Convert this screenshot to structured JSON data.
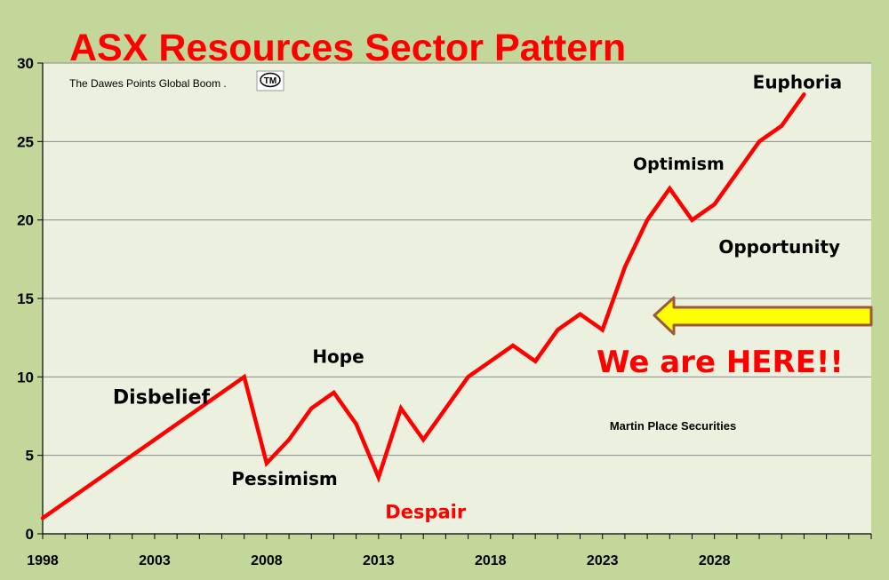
{
  "chart_data": {
    "type": "line",
    "title": "ASX  Resources Sector Pattern",
    "subtitle": "The Dawes Points Global Boom .",
    "trademark": "TM",
    "source": "Martin Place Securities",
    "callout": "We are HERE!!",
    "x_tick_labels": [
      "1998",
      "2003",
      "2008",
      "2013",
      "2018",
      "2023",
      "2028"
    ],
    "y_tick_labels": [
      "0",
      "5",
      "10",
      "15",
      "20",
      "25",
      "30"
    ],
    "xlim": [
      1998,
      2035
    ],
    "ylim": [
      0,
      30
    ],
    "grid": "horizontal",
    "series": [
      {
        "color": "#ff0000",
        "x": [
          1998,
          2001,
          2007,
          2008,
          2009,
          2010,
          2011,
          2012,
          2013,
          2014,
          2015,
          2016,
          2017,
          2018,
          2019,
          2020,
          2021,
          2022,
          2023,
          2024,
          2025,
          2026,
          2027,
          2028,
          2029,
          2030,
          2031,
          2032
        ],
        "y": [
          1,
          4,
          10,
          4.5,
          6,
          8,
          9,
          7,
          3.6,
          8,
          6,
          8,
          10,
          11,
          12,
          11,
          13,
          14,
          13,
          17,
          20,
          22,
          20,
          21,
          23,
          25,
          26,
          28
        ]
      }
    ],
    "annotations": [
      {
        "text": "Disbelief",
        "x": 2003.3,
        "y": 8.3,
        "color": "#000000",
        "size": 22
      },
      {
        "text": "Pessimism",
        "x": 2008.8,
        "y": 3.1,
        "color": "#000000",
        "size": 20
      },
      {
        "text": "Hope",
        "x": 2011.2,
        "y": 10.9,
        "color": "#000000",
        "size": 20
      },
      {
        "text": "Despair",
        "x": 2015.1,
        "y": 1.0,
        "color": "#ff0000",
        "size": 21
      },
      {
        "text": "Optimism",
        "x": 2026.4,
        "y": 23.2,
        "color": "#000000",
        "size": 19
      },
      {
        "text": "Euphoria",
        "x": 2031.7,
        "y": 28.4,
        "color": "#000000",
        "size": 20
      },
      {
        "text": "Opportunity",
        "x": 2030.9,
        "y": 17.9,
        "color": "#000000",
        "size": 20
      }
    ],
    "colors": {
      "background": "#c4d79b",
      "plot_area": "#ebf1de",
      "line": "#ff0000",
      "arrow_fill": "#ffff00",
      "arrow_stroke": "#9c5a3c"
    }
  }
}
